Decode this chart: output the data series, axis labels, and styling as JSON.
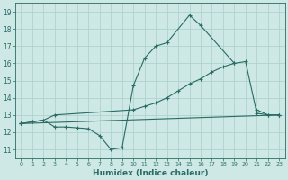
{
  "bg_color": "#cde8e5",
  "grid_color": "#aacfcc",
  "line_color": "#2a6b65",
  "xlabel": "Humidex (Indice chaleur)",
  "xlim": [
    -0.5,
    23.5
  ],
  "ylim": [
    10.5,
    19.5
  ],
  "yticks": [
    11,
    12,
    13,
    14,
    15,
    16,
    17,
    18,
    19
  ],
  "xticks": [
    0,
    1,
    2,
    3,
    4,
    5,
    6,
    7,
    8,
    9,
    10,
    11,
    12,
    13,
    14,
    15,
    16,
    17,
    18,
    19,
    20,
    21,
    22,
    23
  ],
  "line1_x": [
    0,
    1,
    2,
    3,
    4,
    5,
    6,
    7,
    8,
    9,
    10,
    11,
    12,
    13,
    15,
    16,
    19,
    20,
    21,
    22,
    23
  ],
  "line1_y": [
    12.5,
    12.6,
    12.7,
    12.3,
    12.3,
    12.25,
    12.2,
    11.8,
    11.0,
    11.1,
    14.7,
    16.3,
    17.0,
    17.2,
    18.8,
    18.2,
    16.0,
    null,
    13.3,
    13.0,
    13.0
  ],
  "line2_x": [
    0,
    1,
    2,
    3,
    10,
    11,
    12,
    13,
    14,
    15,
    16,
    17,
    18,
    19,
    20,
    21,
    22,
    23
  ],
  "line2_y": [
    12.5,
    12.6,
    12.7,
    13.0,
    13.3,
    13.5,
    13.7,
    14.0,
    14.4,
    14.8,
    15.1,
    15.5,
    15.8,
    16.0,
    16.1,
    13.1,
    13.0,
    13.0
  ],
  "line3_x": [
    0,
    23
  ],
  "line3_y": [
    12.5,
    13.0
  ]
}
